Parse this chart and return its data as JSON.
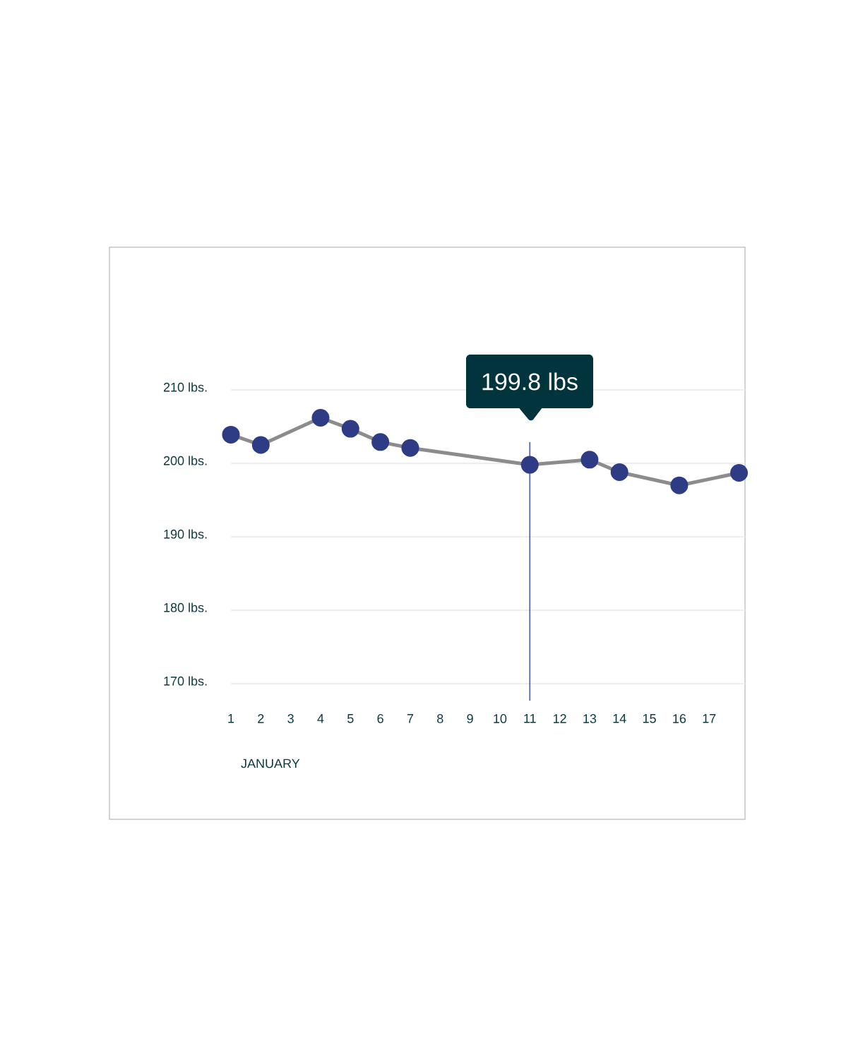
{
  "chart_data": {
    "type": "line",
    "xlabel": "JANUARY",
    "x": [
      1,
      2,
      4,
      5,
      6,
      7,
      11,
      13,
      14,
      16,
      18
    ],
    "series": [
      {
        "color": "#2e3b85",
        "values": [
          203.9,
          202.5,
          206.2,
          204.7,
          202.9,
          202.1,
          199.8,
          200.5,
          198.8,
          197.0,
          198.7
        ]
      }
    ],
    "xlim": [
      1,
      18.2
    ],
    "xticks": [
      1,
      2,
      3,
      4,
      5,
      6,
      7,
      8,
      9,
      10,
      11,
      12,
      13,
      14,
      15,
      16,
      17
    ],
    "ylim": [
      170,
      210
    ],
    "yticks": [
      {
        "value": 170,
        "label": "170 lbs."
      },
      {
        "value": 180,
        "label": "180 lbs."
      },
      {
        "value": 190,
        "label": "190 lbs."
      },
      {
        "value": 200,
        "label": "200 lbs."
      },
      {
        "value": 210,
        "label": "210 lbs."
      }
    ],
    "grid": "y",
    "marker": "circle",
    "line_style": "solid",
    "ref_lines": [
      {
        "axis": "x",
        "value": 11,
        "color": "#5a6aa0"
      }
    ],
    "annotations": [
      "199.8 lbs"
    ]
  }
}
